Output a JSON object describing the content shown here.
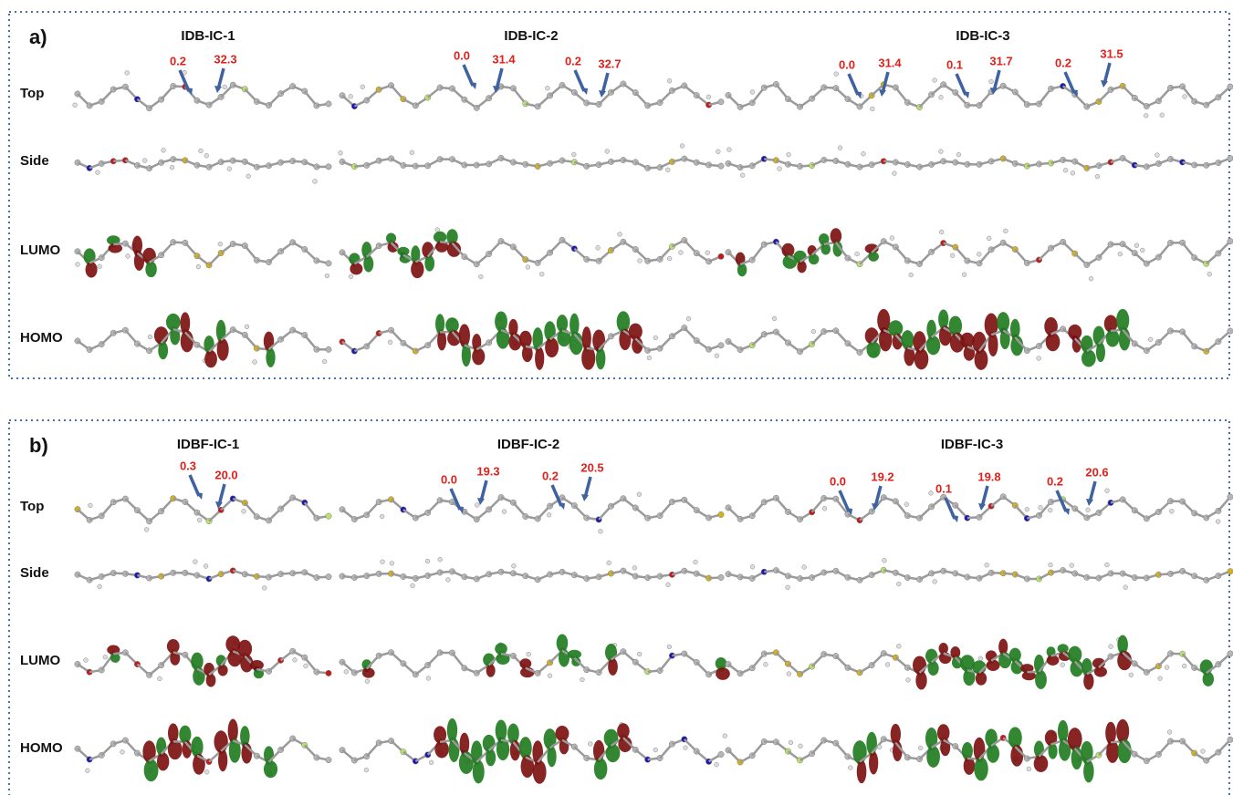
{
  "panels": [
    {
      "label": "a)",
      "rows": [
        "Top",
        "Side",
        "LUMO",
        "HOMO"
      ],
      "columns": [
        {
          "title": "IDB-IC-1",
          "angles": [
            "0.2",
            "32.3"
          ]
        },
        {
          "title": "IDB-IC-2",
          "angles": [
            "0.0",
            "31.4",
            "0.2",
            "32.7"
          ]
        },
        {
          "title": "IDB-IC-3",
          "angles": [
            "0.0",
            "31.4",
            "0.1",
            "31.7",
            "0.2",
            "31.5"
          ]
        }
      ]
    },
    {
      "label": "b)",
      "rows": [
        "Top",
        "Side",
        "LUMO",
        "HOMO"
      ],
      "columns": [
        {
          "title": "IDBF-IC-1",
          "angles": [
            "0.3",
            "20.0"
          ]
        },
        {
          "title": "IDBF-IC-2",
          "angles": [
            "0.0",
            "19.3",
            "0.2",
            "20.5"
          ]
        },
        {
          "title": "IDBF-IC-3",
          "angles": [
            "0.0",
            "19.2",
            "0.1",
            "19.8",
            "0.2",
            "20.6"
          ]
        }
      ]
    }
  ]
}
